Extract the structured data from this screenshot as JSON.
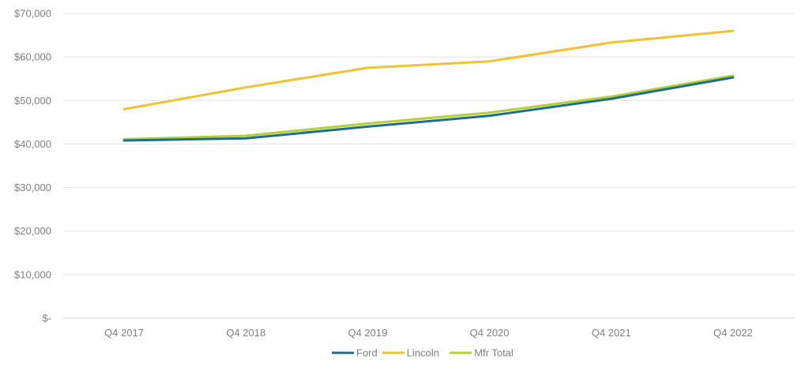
{
  "chart_data": {
    "type": "line",
    "categories": [
      "Q4 2017",
      "Q4 2018",
      "Q4 2019",
      "Q4 2020",
      "Q4 2021",
      "Q4 2022"
    ],
    "series": [
      {
        "name": "Ford",
        "color": "#1f6f8b",
        "values": [
          40800,
          41300,
          44000,
          46500,
          50400,
          55300
        ]
      },
      {
        "name": "Lincoln",
        "color": "#f0c233",
        "values": [
          48000,
          53000,
          57500,
          59000,
          63300,
          66000
        ]
      },
      {
        "name": "Mfr Total",
        "color": "#b5cf3a",
        "values": [
          41100,
          41900,
          44700,
          47200,
          50900,
          55700
        ]
      }
    ],
    "yticks": [
      0,
      10000,
      20000,
      30000,
      40000,
      50000,
      60000,
      70000
    ],
    "ytick_labels": [
      "$-",
      "$10,000",
      "$20,000",
      "$30,000",
      "$40,000",
      "$50,000",
      "$60,000",
      "$70,000"
    ],
    "ylim": [
      0,
      70000
    ],
    "grid": true,
    "legend_position": "bottom"
  }
}
